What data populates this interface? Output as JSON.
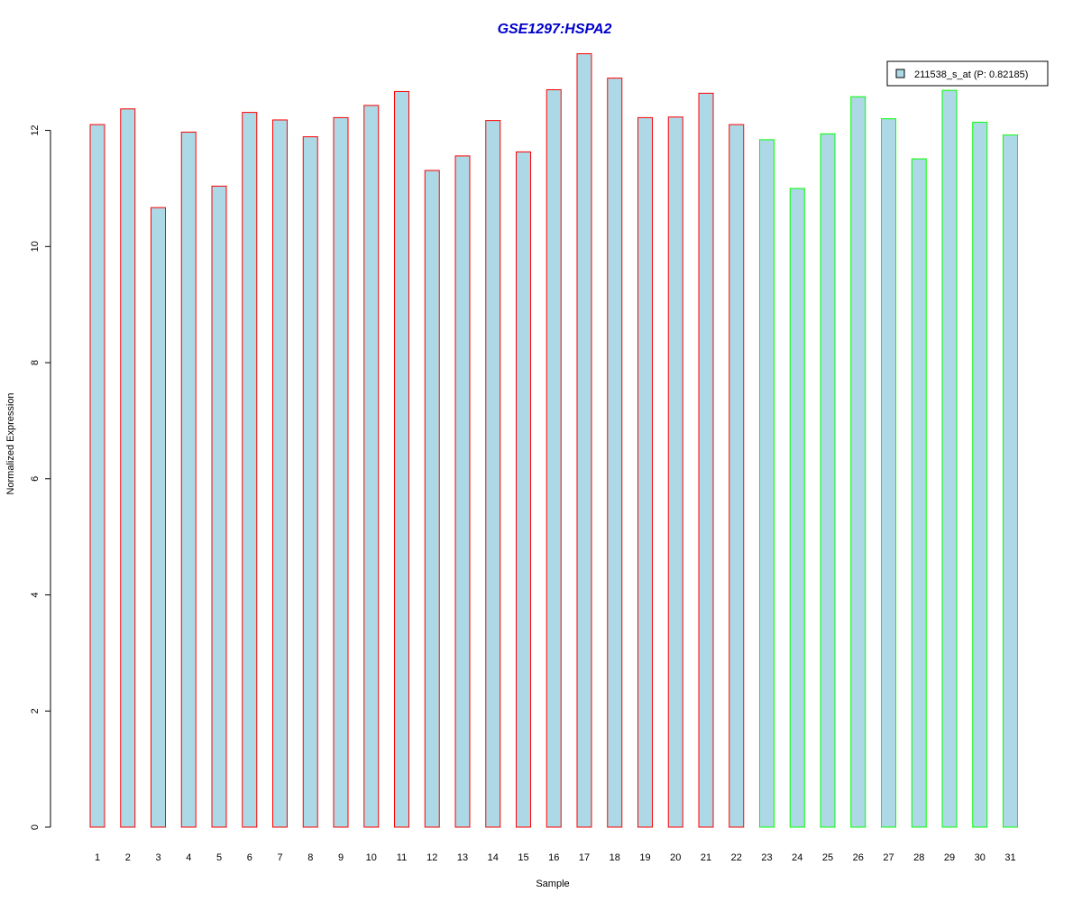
{
  "chart_data": {
    "type": "bar",
    "title": "GSE1297:HSPA2",
    "xlabel": "Sample",
    "ylabel": "Normalized Expression",
    "ylim": [
      0,
      13.3
    ],
    "yticks": [
      0,
      2,
      4,
      6,
      8,
      10,
      12
    ],
    "categories": [
      "1",
      "2",
      "3",
      "4",
      "5",
      "6",
      "7",
      "8",
      "9",
      "10",
      "11",
      "12",
      "13",
      "14",
      "15",
      "16",
      "17",
      "18",
      "19",
      "20",
      "21",
      "22",
      "23",
      "24",
      "25",
      "26",
      "27",
      "28",
      "29",
      "30",
      "31"
    ],
    "series": [
      {
        "name": "211538_s_at (P: 0.82185)",
        "values": [
          12.1,
          12.37,
          10.67,
          11.97,
          11.04,
          12.31,
          12.18,
          11.89,
          12.22,
          12.43,
          12.67,
          11.31,
          11.56,
          12.17,
          11.63,
          12.7,
          13.32,
          12.9,
          12.22,
          12.23,
          12.64,
          12.1,
          11.84,
          11.0,
          11.94,
          12.58,
          12.2,
          11.51,
          12.69,
          12.14,
          11.92
        ]
      }
    ],
    "groups": [
      {
        "from": 1,
        "to": 22,
        "border_color": "#ff0000"
      },
      {
        "from": 23,
        "to": 31,
        "border_color": "#00ff00"
      }
    ],
    "legend": {
      "label": "211538_s_at (P: 0.82185)",
      "position": "top-right"
    },
    "grid": false
  },
  "colors": {
    "bar_fill": "#add8e6",
    "title": "#0000cc"
  }
}
